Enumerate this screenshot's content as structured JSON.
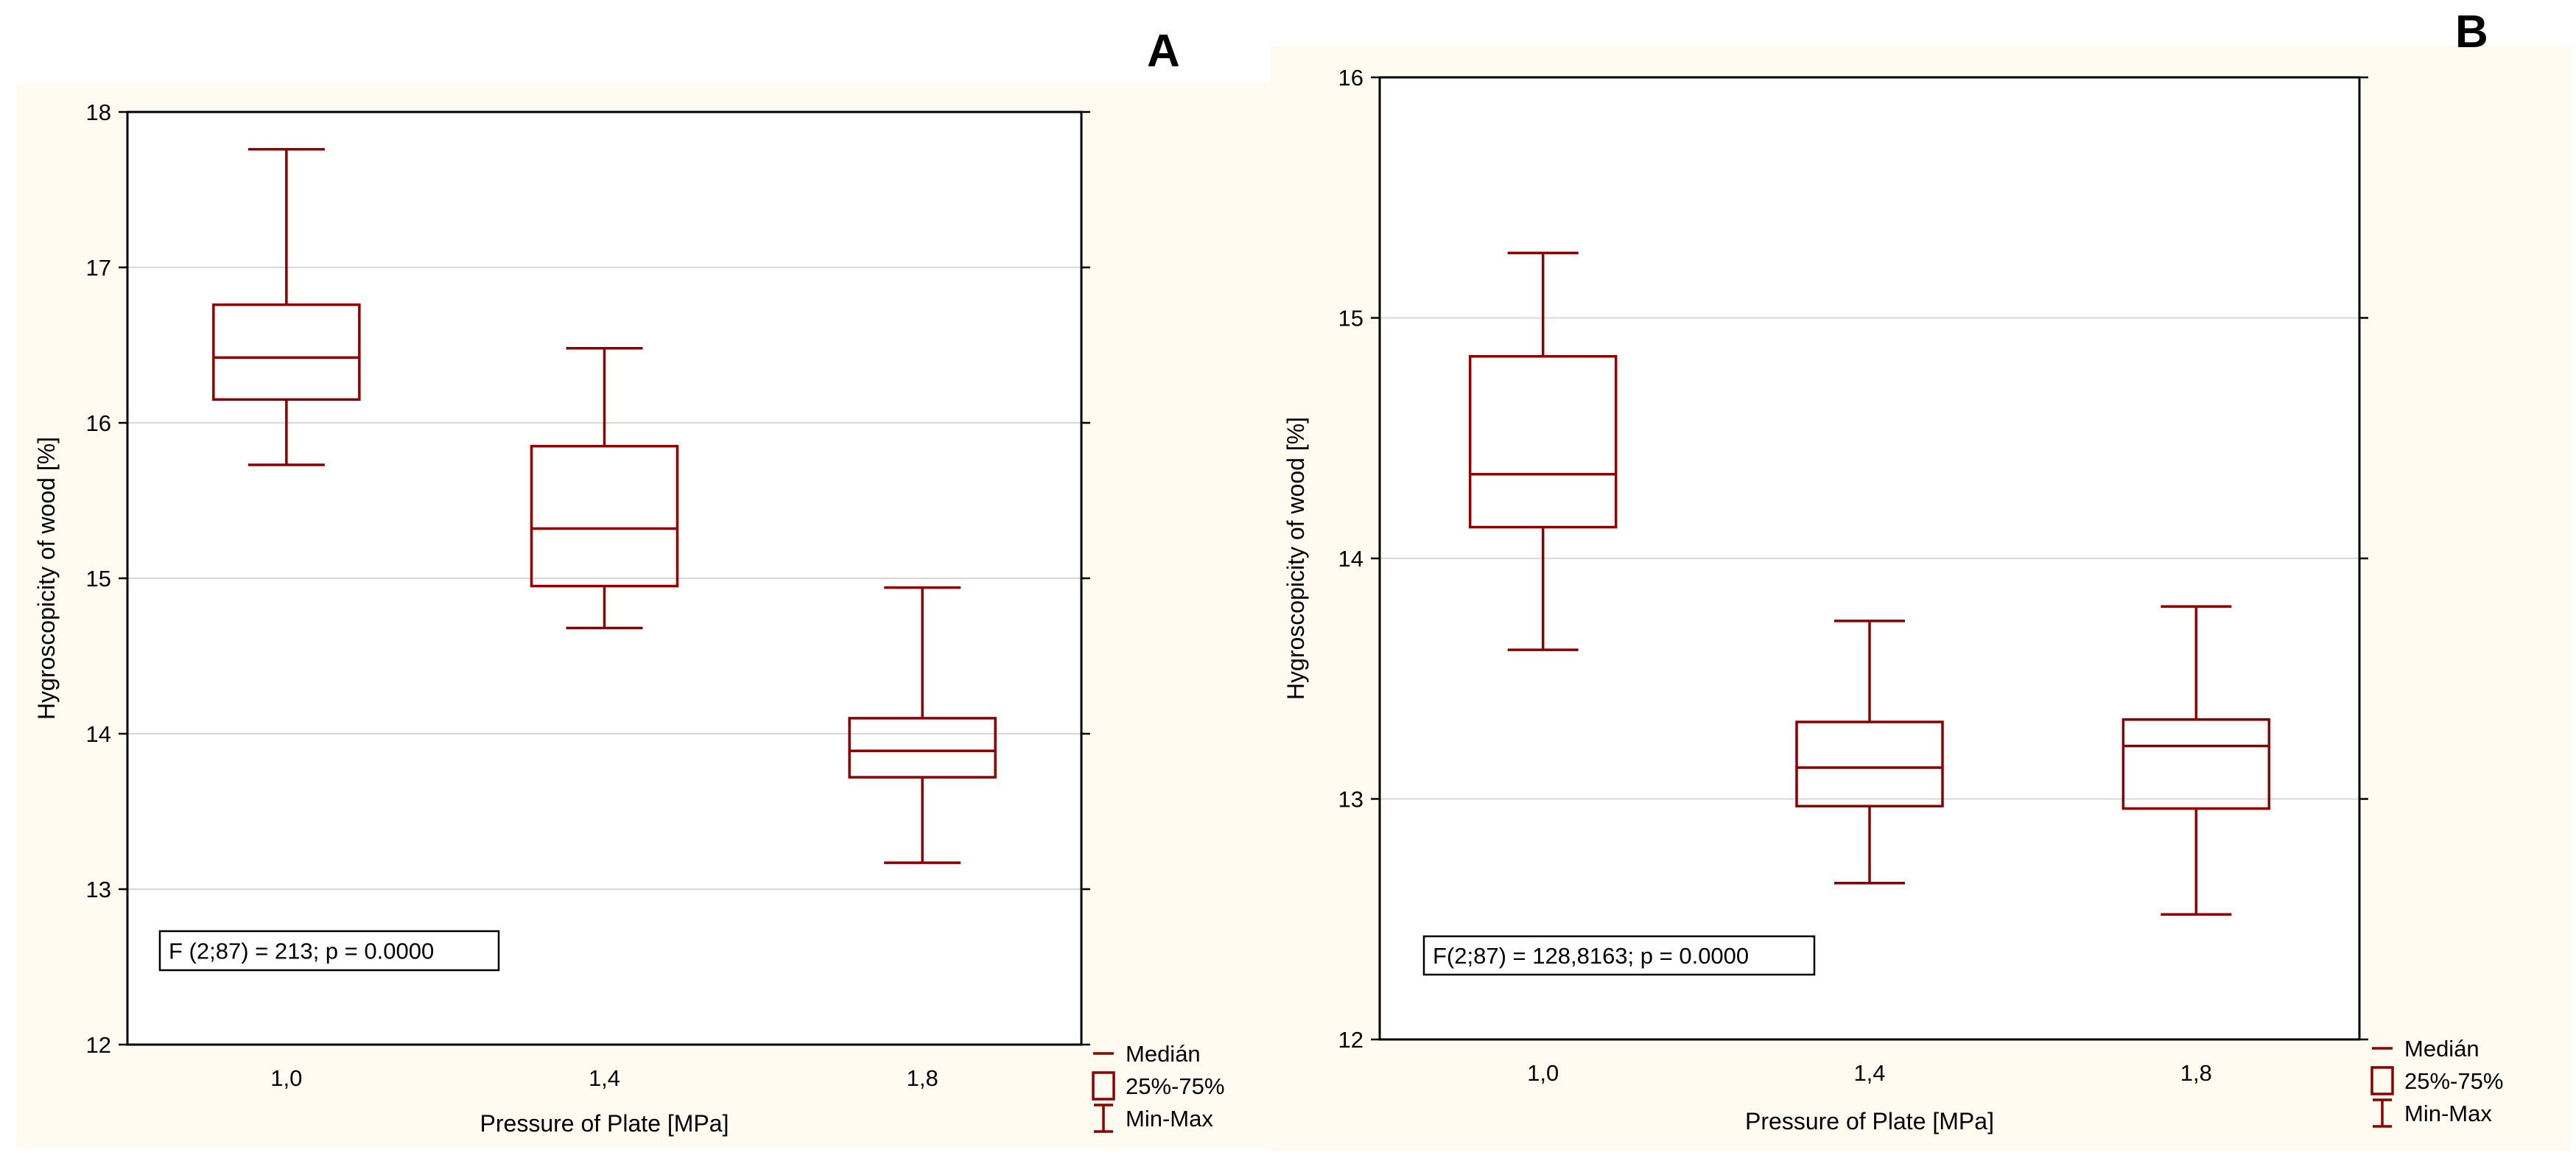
{
  "panels": [
    {
      "letter": "A"
    },
    {
      "letter": "B"
    }
  ],
  "colors": {
    "box": "#8b0000",
    "panel_bg": "#fffbf0",
    "plot_bg": "#ffffff",
    "grid": "#d9d9d9"
  },
  "chart_data": [
    {
      "type": "box",
      "xlabel": "Pressure of Plate [MPa]",
      "ylabel": "Hygroscopicity of wood [%]",
      "ylim": [
        12,
        18
      ],
      "yticks": [
        "12",
        "13",
        "14",
        "15",
        "16",
        "17",
        "18"
      ],
      "categories": [
        "1,0",
        "1,4",
        "1,8"
      ],
      "boxes": [
        {
          "min": 15.73,
          "q1": 16.15,
          "median": 16.42,
          "q3": 16.76,
          "max": 17.76
        },
        {
          "min": 14.68,
          "q1": 14.95,
          "median": 15.32,
          "q3": 15.85,
          "max": 16.48
        },
        {
          "min": 13.17,
          "q1": 13.72,
          "median": 13.89,
          "q3": 14.1,
          "max": 14.94
        }
      ],
      "grid": true,
      "annotation": "F (2;87) = 213; p = 0.0000",
      "legend": {
        "position": "bottom-right",
        "items": [
          "Medián",
          "25%-75%",
          "Min-Max"
        ]
      }
    },
    {
      "type": "box",
      "xlabel": "Pressure of Plate [MPa]",
      "ylabel": "Hygroscopicity of wood [%]",
      "ylim": [
        12,
        16
      ],
      "yticks": [
        "12",
        "13",
        "14",
        "15",
        "16"
      ],
      "categories": [
        "1,0",
        "1,4",
        "1,8"
      ],
      "boxes": [
        {
          "min": 13.62,
          "q1": 14.13,
          "median": 14.35,
          "q3": 14.84,
          "max": 15.27
        },
        {
          "min": 12.65,
          "q1": 12.97,
          "median": 13.13,
          "q3": 13.32,
          "max": 13.74
        },
        {
          "min": 12.52,
          "q1": 12.96,
          "median": 13.22,
          "q3": 13.33,
          "max": 13.8
        }
      ],
      "grid": true,
      "annotation": "F(2;87) = 128,8163; p = 0.0000",
      "legend": {
        "position": "bottom-right",
        "items": [
          "Medián",
          "25%-75%",
          "Min-Max"
        ]
      }
    }
  ]
}
